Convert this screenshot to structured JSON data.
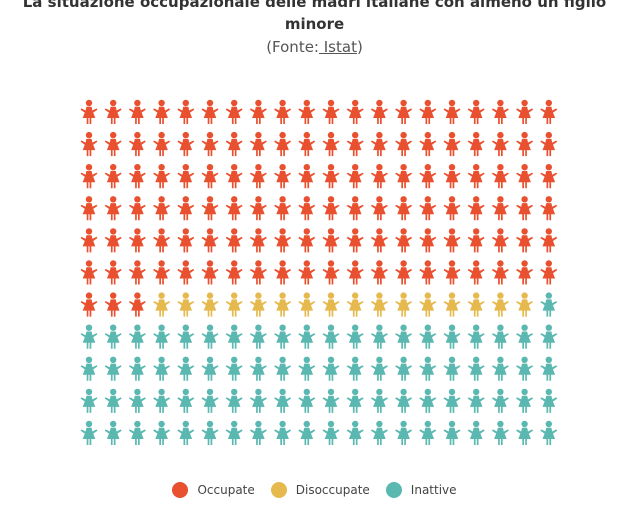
{
  "chart_data": {
    "type": "waffle",
    "title": "La situazione occupazionale delle madri italiane con almeno un figlio minore",
    "source_prefix": "(Fonte:",
    "source_name": " Istat",
    "source_suffix": ")",
    "rows": 11,
    "columns": 20,
    "categories": [
      {
        "name": "Occupate",
        "count": 123,
        "color": "#e8502f"
      },
      {
        "name": "Disoccupate",
        "count": 16,
        "color": "#e6b94e"
      },
      {
        "name": "Inattive",
        "count": 81,
        "color": "#5ab8b1"
      }
    ],
    "icon": "woman-icon",
    "legend_position": "bottom"
  }
}
